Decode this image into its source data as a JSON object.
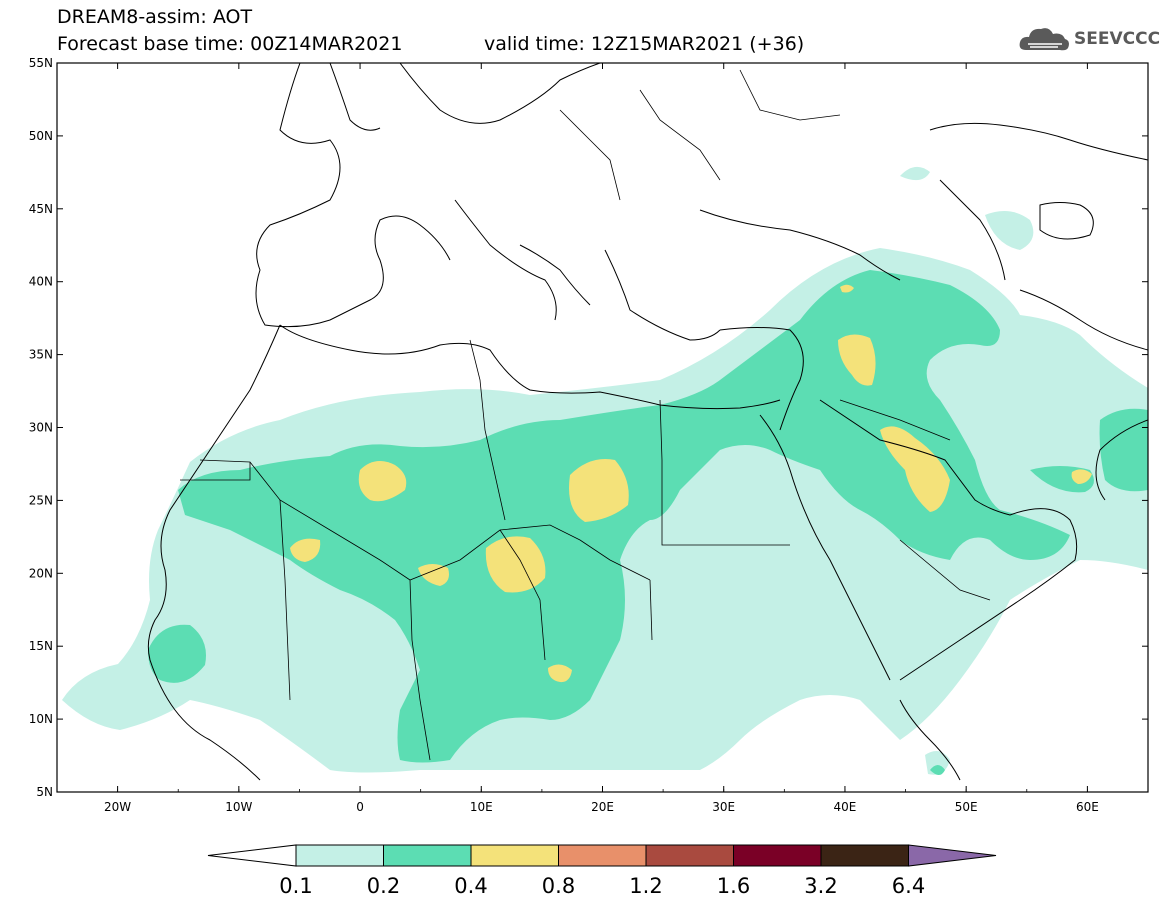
{
  "header": {
    "title": "DREAM8-assim: AOT",
    "forecast_base": "Forecast base time: 00Z14MAR2021",
    "valid_time": "valid time: 12Z15MAR2021 (+36)"
  },
  "logo": {
    "text": "SEEVCCC",
    "icon": "cloud-icon"
  },
  "map": {
    "lon_range": [
      -25,
      65
    ],
    "lat_range": [
      5,
      55
    ],
    "lat_labels": [
      "55N",
      "50N",
      "45N",
      "40N",
      "35N",
      "30N",
      "25N",
      "20N",
      "15N",
      "10N",
      "5N"
    ],
    "lon_labels": [
      "20W",
      "10W",
      "0",
      "10E",
      "20E",
      "30E",
      "40E",
      "50E",
      "60E"
    ]
  },
  "colorbar": {
    "labels": [
      "0.1",
      "0.2",
      "0.4",
      "0.8",
      "1.2",
      "1.6",
      "3.2",
      "6.4"
    ],
    "colors": [
      "#ffffff",
      "#c4f0e6",
      "#5cddb3",
      "#f4e27a",
      "#e8906a",
      "#a94a3f",
      "#7a0026",
      "#3b2415",
      "#8a68a8"
    ]
  }
}
